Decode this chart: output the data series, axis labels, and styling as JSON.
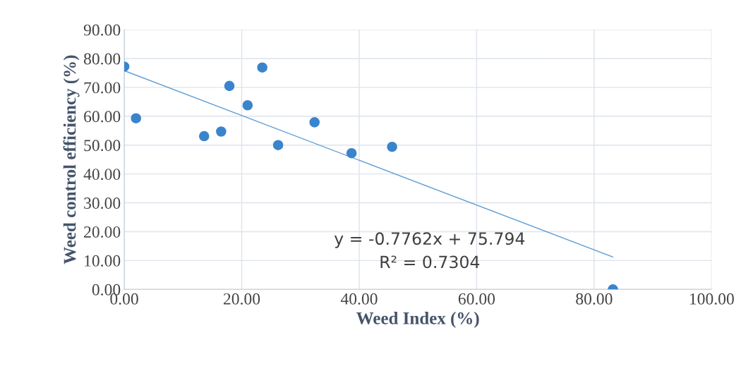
{
  "chart_data": {
    "type": "scatter",
    "xlabel": "Weed Index (%)",
    "ylabel": "Weed control efficiency (%)",
    "xlim": [
      0,
      100
    ],
    "xticks": [
      {
        "value": 0,
        "label": "0.00"
      },
      {
        "value": 20,
        "label": "20.00"
      },
      {
        "value": 40,
        "label": "40.00"
      },
      {
        "value": 60,
        "label": "60.00"
      },
      {
        "value": 80,
        "label": "80.00"
      },
      {
        "value": 100,
        "label": "100.00"
      }
    ],
    "ylim": [
      0,
      90
    ],
    "yticks": [
      {
        "value": 0,
        "label": "0.00"
      },
      {
        "value": 10,
        "label": "10.00"
      },
      {
        "value": 20,
        "label": "20.00"
      },
      {
        "value": 30,
        "label": "30.00"
      },
      {
        "value": 40,
        "label": "40.00"
      },
      {
        "value": 50,
        "label": "50.00"
      },
      {
        "value": 60,
        "label": "60.00"
      },
      {
        "value": 70,
        "label": "70.00"
      },
      {
        "value": 80,
        "label": "80.00"
      },
      {
        "value": 90,
        "label": "90.00"
      }
    ],
    "grid": true,
    "marker": "circle",
    "series": [
      {
        "color": "#3a84cc",
        "x": [
          0,
          2.0,
          13.6,
          16.5,
          17.9,
          21.0,
          23.5,
          26.2,
          32.4,
          38.7,
          45.6,
          83.2
        ],
        "values": [
          77.2,
          59.3,
          53.1,
          54.7,
          70.5,
          63.8,
          76.9,
          50.0,
          57.9,
          47.2,
          49.4,
          0
        ]
      },
      {
        "type": "line",
        "color": "#5b9bd5",
        "marker": "none",
        "x": [
          0,
          83.2
        ],
        "values": [
          75.8,
          11.2
        ]
      }
    ],
    "annotations": [
      "y = -0.7762x + 75.794",
      "R² = 0.7304"
    ]
  }
}
